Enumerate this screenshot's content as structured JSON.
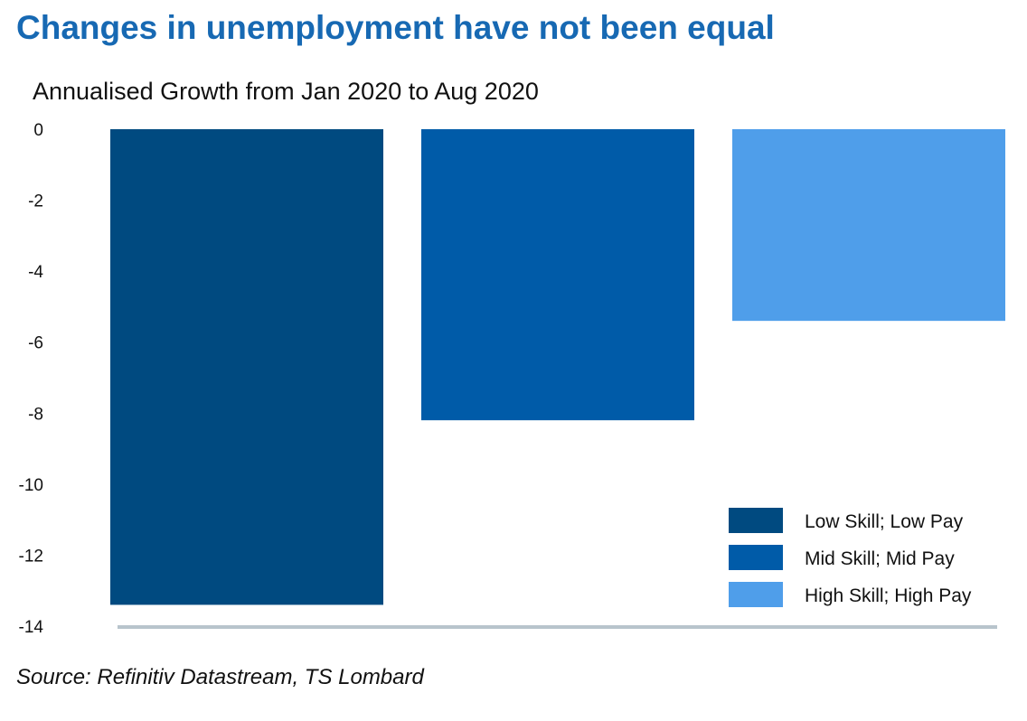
{
  "title": "Changes in unemployment have not been equal",
  "source": "Source: Refinitiv Datastream, TS Lombard",
  "chart_data": {
    "type": "bar",
    "title": "Annualised Growth from Jan 2020 to Aug 2020",
    "categories": [
      "Low Skill; Low Pay",
      "Mid Skill; Mid Pay",
      "High Skill; High Pay"
    ],
    "values": [
      -13.4,
      -8.2,
      -5.4
    ],
    "colors": [
      "#004a80",
      "#005ba8",
      "#4f9eea"
    ],
    "ylim": [
      -14,
      0
    ],
    "yticks": [
      "0",
      "-2",
      "-4",
      "-6",
      "-8",
      "-10",
      "-12",
      "-14"
    ],
    "ytick_values": [
      0,
      -2,
      -4,
      -6,
      -8,
      -10,
      -12,
      -14
    ],
    "legend_position": "bottom-right",
    "grid": false,
    "axis_line_color": "#b8c4cc"
  }
}
